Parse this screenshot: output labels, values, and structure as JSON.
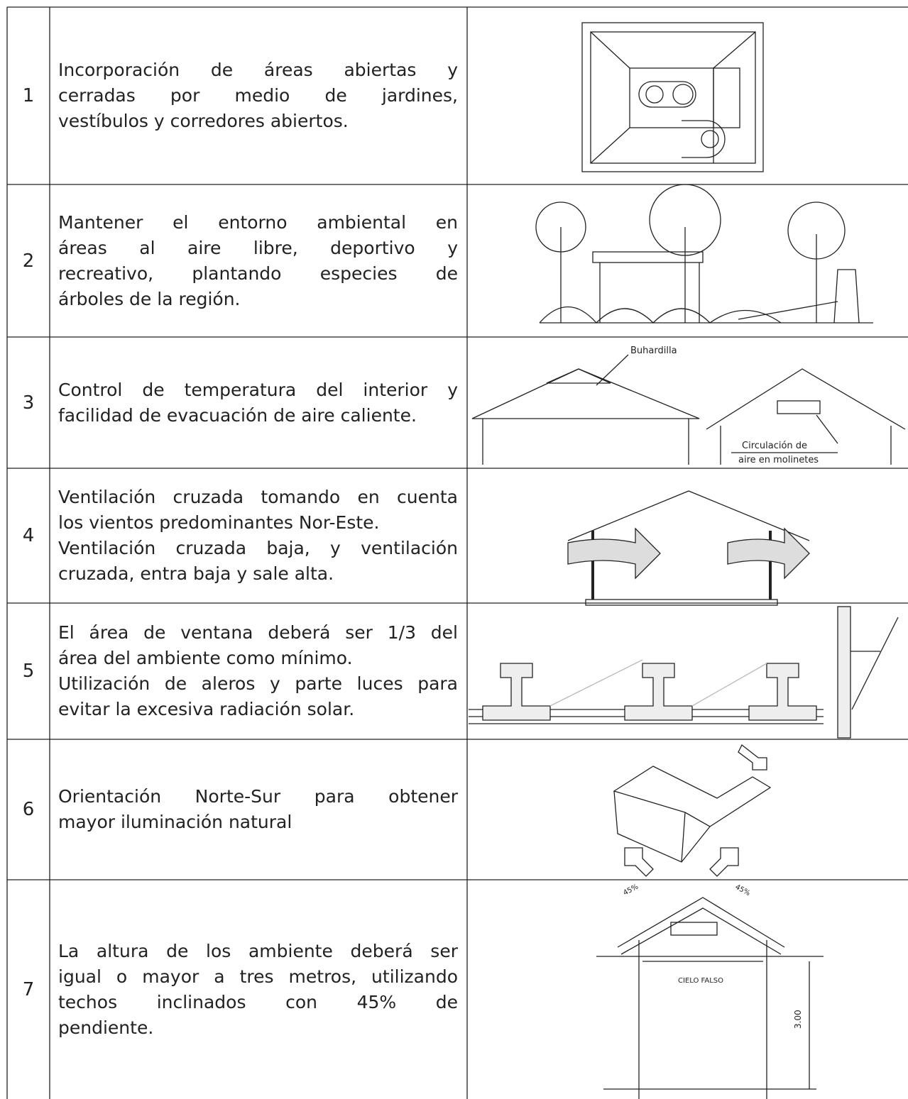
{
  "table": {
    "rows": [
      {
        "number": "1",
        "paragraphs": [
          [
            "Incorporación de áreas abiertas y",
            "cerradas por medio de jardines,",
            "vestíbulos y corredores abiertos."
          ]
        ]
      },
      {
        "number": "2",
        "paragraphs": [
          [
            "Mantener el entorno ambiental en",
            "áreas al aire libre, deportivo y",
            "recreativo, plantando especies de",
            "árboles de la región."
          ]
        ]
      },
      {
        "number": "3",
        "paragraphs": [
          [
            "Control de temperatura del interior y",
            "facilidad de evacuación de aire caliente."
          ]
        ],
        "labels": [
          "Buhardilla",
          "Circulación de",
          "aire en molinetes"
        ]
      },
      {
        "number": "4",
        "paragraphs": [
          [
            "Ventilación cruzada tomando en cuenta",
            "los vientos predominantes Nor-Este."
          ],
          [
            "Ventilación cruzada baja, y ventilación",
            "cruzada, entra baja y sale alta."
          ]
        ]
      },
      {
        "number": "5",
        "paragraphs": [
          [
            "El área de ventana deberá ser 1/3 del",
            "área del ambiente como mínimo."
          ],
          [
            "Utilización de aleros y parte luces para",
            "evitar la excesiva radiación solar."
          ]
        ]
      },
      {
        "number": "6",
        "paragraphs": [
          [
            "Orientación Norte-Sur para obtener",
            "mayor iluminación natural"
          ]
        ]
      },
      {
        "number": "7",
        "paragraphs": [
          [
            "La altura de los ambiente deberá ser",
            "igual o mayor a tres metros, utilizando",
            "techos inclinados con 45% de",
            "pendiente."
          ]
        ],
        "labels": [
          "45%",
          "45%",
          "CIELO FALSO",
          "3.00"
        ]
      }
    ]
  }
}
